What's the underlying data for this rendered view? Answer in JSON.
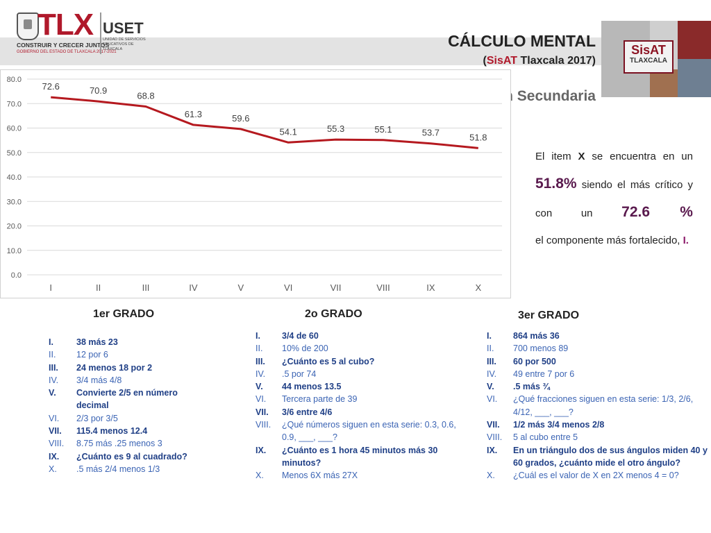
{
  "header": {
    "logo_text": "TLX",
    "logo_tagline": "CONSTRUIR Y CRECER JUNTOS",
    "logo_subtagline": "GOBIERNO DEL ESTADO DE TLAXCALA 2017-2021",
    "uset": "USET",
    "uset_subtitle": "UNIDAD DE SERVICIOS EDUCATIVOS DE TLAXCALA",
    "title": "CÁLCULO MENTAL",
    "subtitle_open": "(",
    "subtitle_accent": "SisAT",
    "subtitle_rest": " Tlaxcala 2017)",
    "sisat_logo_title": "SisAT",
    "sisat_logo_sub": "TLAXCALA",
    "education_level": "Educación Secundaria",
    "accent_color": "#b0192b"
  },
  "chart_data": {
    "type": "line",
    "categories": [
      "I",
      "II",
      "III",
      "IV",
      "V",
      "VI",
      "VII",
      "VIII",
      "IX",
      "X"
    ],
    "series": [
      {
        "values": [
          72.6,
          70.9,
          68.8,
          61.3,
          59.6,
          54.1,
          55.3,
          55.1,
          53.7,
          51.8
        ],
        "color": "#b5191f"
      }
    ],
    "data_labels": [
      "72.6",
      "70.9",
      "68.8",
      "61.3",
      "59.6",
      "54.1",
      "55.3",
      "55.1",
      "53.7",
      "51.8"
    ],
    "y_ticks": [
      "0.0",
      "10.0",
      "20.0",
      "30.0",
      "40.0",
      "50.0",
      "60.0",
      "70.0",
      "80.0"
    ],
    "ylim": [
      0,
      80
    ],
    "grid": true,
    "title": "",
    "xlabel": "",
    "ylabel": ""
  },
  "description": {
    "part1": "El item ",
    "item_x": "X",
    "part2": " se encuentra en un ",
    "lowest": "51.8%",
    "part3": " siendo el más crítico y con un ",
    "highest": "72.6 %",
    "part4": " el componente más fortalecido, ",
    "highest_item": "I."
  },
  "grades": [
    {
      "title": "1er GRADO",
      "items": [
        {
          "num": "I.",
          "text": "38 más 23"
        },
        {
          "num": "II.",
          "text": "12 por 6"
        },
        {
          "num": "III.",
          "text": "24 menos 18 por 2"
        },
        {
          "num": "IV.",
          "text": "3/4 más 4/8"
        },
        {
          "num": "V.",
          "text": "Convierte 2/5 en número decimal"
        },
        {
          "num": "VI.",
          "text": "2/3 por 3/5"
        },
        {
          "num": "VII.",
          "text": "115.4 menos 12.4"
        },
        {
          "num": "VIII.",
          "text": "8.75 más .25 menos 3"
        },
        {
          "num": "IX.",
          "text": "¿Cuánto es 9 al cuadrado?"
        },
        {
          "num": "X.",
          "text": ".5 más 2/4 menos 1/3"
        }
      ]
    },
    {
      "title": "2o GRADO",
      "items": [
        {
          "num": "I.",
          "text": "3/4 de 60"
        },
        {
          "num": "II.",
          "text": "10% de 200"
        },
        {
          "num": "III.",
          "text": "¿Cuánto es 5 al cubo?"
        },
        {
          "num": "IV.",
          "text": ".5 por 74"
        },
        {
          "num": "V.",
          "text": "44 menos 13.5"
        },
        {
          "num": "VI.",
          "text": "Tercera parte de 39"
        },
        {
          "num": "VII.",
          "text": "3/6 entre 4/6"
        },
        {
          "num": "VIII.",
          "text": "¿Qué números siguen en esta serie: 0.3, 0.6, 0.9, ___, ___?"
        },
        {
          "num": "IX.",
          "text": "¿Cuánto es 1 hora 45 minutos más 30 minutos?"
        },
        {
          "num": "X.",
          "text": "Menos 6X  más 27X"
        }
      ]
    },
    {
      "title": "3er GRADO",
      "items": [
        {
          "num": "I.",
          "text": "864 más 36"
        },
        {
          "num": "II.",
          "text": "700 menos 89"
        },
        {
          "num": "III.",
          "text": "60 por 500"
        },
        {
          "num": "IV.",
          "text": "49 entre 7 por 6"
        },
        {
          "num": "V.",
          "text": ".5 más ¾"
        },
        {
          "num": "VI.",
          "text": "¿Qué fracciones siguen en esta serie: 1/3, 2/6, 4/12, ___, ___?"
        },
        {
          "num": "VII.",
          "text": "1/2 más 3/4 menos 2/8"
        },
        {
          "num": "VIII.",
          "text": "5 al cubo entre 5"
        },
        {
          "num": "IX.",
          "text": "En un triángulo dos de sus ángulos miden 40 y 60 grados, ¿cuánto mide el otro ángulo?"
        },
        {
          "num": "X.",
          "text": "¿Cuál es el valor de X en 2X menos 4 = 0?"
        }
      ]
    }
  ]
}
